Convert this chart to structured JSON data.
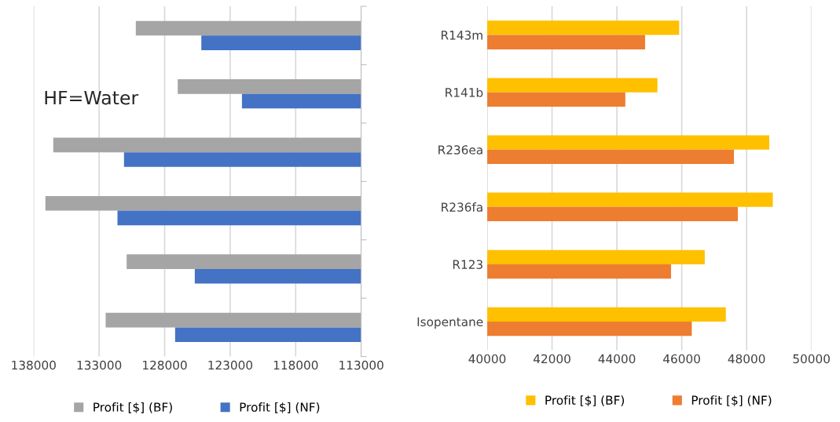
{
  "chart_data": [
    {
      "type": "bar",
      "orientation": "horizontal",
      "categories": [
        null,
        null,
        null,
        null,
        null,
        null
      ],
      "series": [
        {
          "name": "Profit [$] (BF)",
          "color": "#a5a5a5",
          "values": [
            130200,
            127000,
            136500,
            137100,
            130900,
            132500
          ]
        },
        {
          "name": "Profit [$] (NF)",
          "color": "#4472c4",
          "values": [
            125200,
            122100,
            131100,
            131600,
            125700,
            127200
          ]
        }
      ],
      "xlim": [
        138000,
        113000
      ],
      "xticks": [
        138000,
        133000,
        128000,
        123000,
        118000,
        113000
      ],
      "grid": "x",
      "legend": "bottom",
      "tick_labels": "x",
      "annotations": [
        "HF=Water"
      ]
    },
    {
      "type": "bar",
      "orientation": "horizontal",
      "categories": [
        "R143m",
        "R141b",
        "R236ea",
        "R236fa",
        "R123",
        "Isopentane"
      ],
      "series": [
        {
          "name": "Profit [$] (BF)",
          "color": "#ffc000",
          "values": [
            45920,
            45250,
            48700,
            48810,
            46710,
            47360
          ]
        },
        {
          "name": "Profit [$] (NF)",
          "color": "#ed7d31",
          "values": [
            44870,
            44260,
            47610,
            47730,
            45670,
            46310
          ]
        }
      ],
      "xlim": [
        40000,
        50000
      ],
      "xticks": [
        40000,
        42000,
        44000,
        46000,
        48000,
        50000
      ],
      "grid": "x",
      "legend": "bottom"
    }
  ]
}
